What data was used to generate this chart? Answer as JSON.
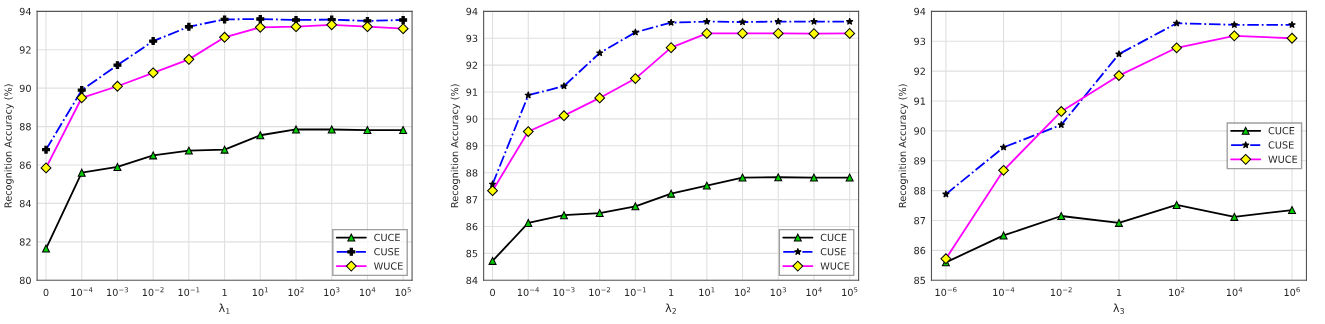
{
  "chart_data": [
    {
      "type": "line",
      "xlabel": "λ$_{1}$",
      "ylabel": "Recognition Accuracy (%)",
      "categories": [
        "0",
        "10$^{−4}$",
        "10$^{−3}$",
        "10$^{−2}$",
        "10$^{−1}$",
        "1",
        "10$^{1}$",
        "10$^{2}$",
        "10$^{3}$",
        "10$^{4}$",
        "10$^{5}$"
      ],
      "ylim": [
        80,
        94
      ],
      "yticks": [
        80,
        82,
        84,
        86,
        88,
        90,
        92,
        94
      ],
      "grid": true,
      "legend": "bottom right",
      "series": [
        {
          "name": "CUCE",
          "color": "#000000",
          "marker": "triangle",
          "line_style": "solid",
          "values": [
            81.65,
            85.6,
            85.9,
            86.5,
            86.75,
            86.8,
            87.55,
            87.85,
            87.85,
            87.82,
            87.82
          ]
        },
        {
          "name": "CUSE",
          "color": "#0000ff",
          "marker": "cross",
          "line_style": "dashed",
          "values": [
            86.8,
            89.9,
            91.2,
            92.45,
            93.2,
            93.58,
            93.6,
            93.55,
            93.57,
            93.5,
            93.55
          ]
        },
        {
          "name": "WUCE",
          "color": "#ff00ff",
          "marker": "diamond",
          "line_style": "solid",
          "values": [
            85.85,
            89.5,
            90.1,
            90.8,
            91.5,
            92.65,
            93.17,
            93.2,
            93.3,
            93.2,
            93.1
          ]
        }
      ]
    },
    {
      "type": "line",
      "xlabel": "λ$_{2}$",
      "ylabel": "Recognition Accuracy (%)",
      "categories": [
        "0",
        "10$^{−4}$",
        "10$^{−3}$",
        "10$^{−2}$",
        "10$^{−1}$",
        "1",
        "10$^{1}$",
        "10$^{2}$",
        "10$^{3}$",
        "10$^{4}$",
        "10$^{5}$"
      ],
      "ylim": [
        84,
        94
      ],
      "yticks": [
        84,
        85,
        86,
        87,
        88,
        89,
        90,
        91,
        92,
        93,
        94
      ],
      "grid": true,
      "legend": "bottom right",
      "series": [
        {
          "name": "CUCE",
          "color": "#000000",
          "marker": "triangle",
          "line_style": "solid",
          "values": [
            84.72,
            86.13,
            86.42,
            86.5,
            86.75,
            87.22,
            87.52,
            87.82,
            87.83,
            87.82,
            87.82
          ]
        },
        {
          "name": "CUSE",
          "color": "#0000ff",
          "marker": "star",
          "line_style": "dashed",
          "values": [
            87.57,
            90.88,
            91.22,
            92.45,
            93.22,
            93.58,
            93.62,
            93.6,
            93.62,
            93.62,
            93.62
          ]
        },
        {
          "name": "WUCE",
          "color": "#ff00ff",
          "marker": "diamond",
          "line_style": "solid",
          "values": [
            87.33,
            89.53,
            90.12,
            90.78,
            91.5,
            92.65,
            93.18,
            93.18,
            93.18,
            93.17,
            93.18
          ]
        }
      ]
    },
    {
      "type": "line",
      "xlabel": "λ$_{3}$",
      "ylabel": "Recognition Accuracy (%)",
      "categories": [
        "10$^{−6}$",
        "10$^{−4}$",
        "10$^{−2}$",
        "1",
        "10$^{2}$",
        "10$^{4}$",
        "10$^{6}$"
      ],
      "ylim": [
        85,
        94
      ],
      "yticks": [
        85,
        86,
        87,
        88,
        89,
        90,
        91,
        92,
        93,
        94
      ],
      "grid": true,
      "legend": "center right",
      "series": [
        {
          "name": "CUCE",
          "color": "#000000",
          "marker": "triangle",
          "line_style": "solid",
          "values": [
            85.6,
            86.5,
            87.15,
            86.92,
            87.52,
            87.12,
            87.35
          ]
        },
        {
          "name": "CUSE",
          "color": "#0000ff",
          "marker": "star",
          "line_style": "dashed",
          "values": [
            87.88,
            89.45,
            90.2,
            92.57,
            93.6,
            93.55,
            93.55
          ]
        },
        {
          "name": "WUCE",
          "color": "#ff00ff",
          "marker": "diamond",
          "line_style": "solid",
          "values": [
            85.72,
            88.68,
            90.65,
            91.85,
            92.78,
            93.18,
            93.1
          ]
        }
      ]
    }
  ]
}
